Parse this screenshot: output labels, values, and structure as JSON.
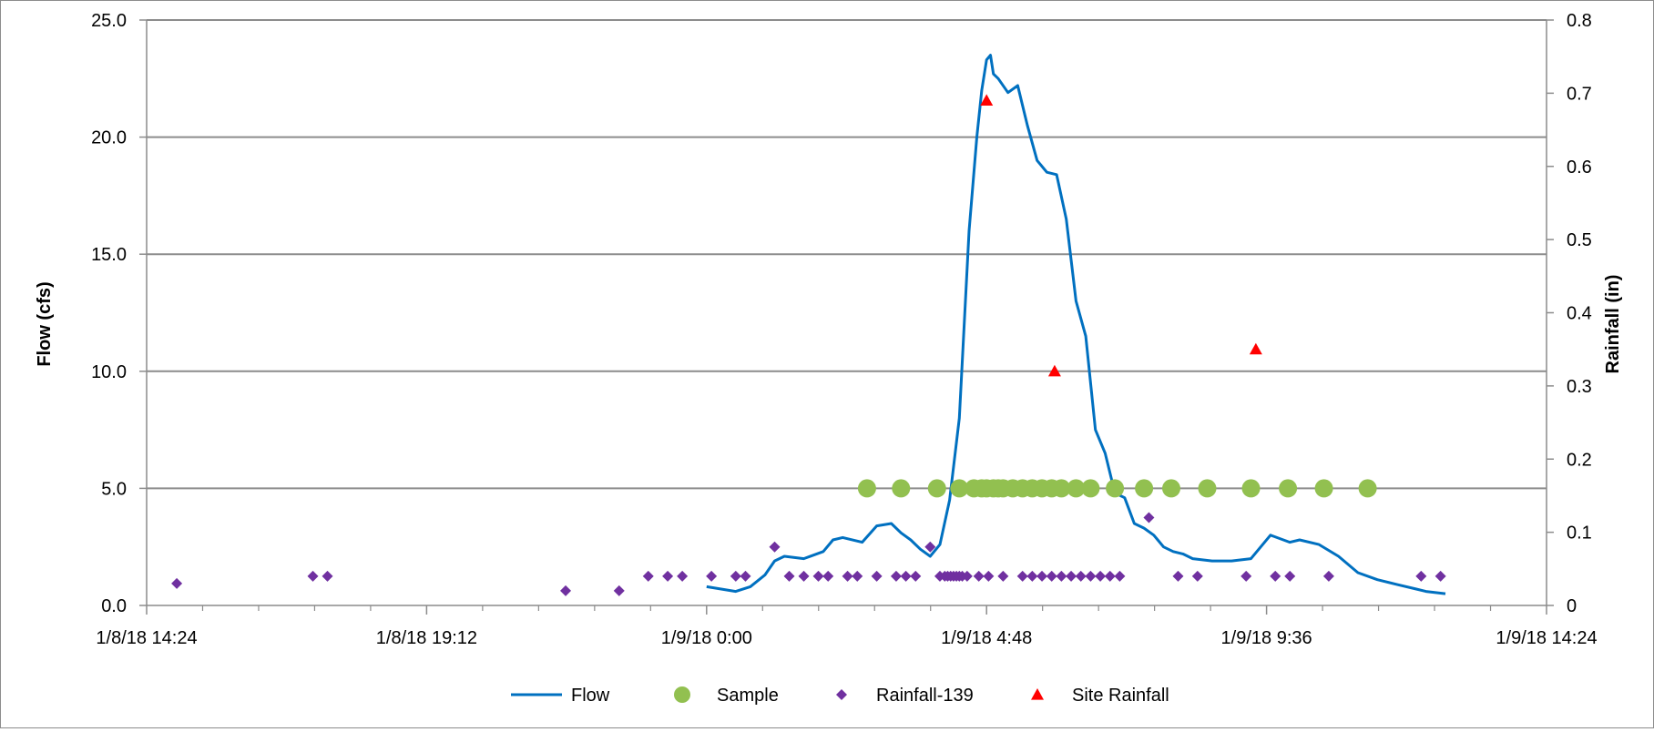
{
  "chart_data": {
    "type": "scatter",
    "title": "",
    "x_axis": {
      "label": "",
      "ticks": [
        "1/8/18 14:24",
        "1/8/18 19:12",
        "1/9/18 0:00",
        "1/9/18 4:48",
        "1/9/18 9:36",
        "1/9/18 14:24"
      ],
      "range": [
        "1/8/18 14:24",
        "1/9/18 14:24"
      ]
    },
    "y_axis_left": {
      "label": "Flow (cfs)",
      "ticks": [
        "0.0",
        "5.0",
        "10.0",
        "15.0",
        "20.0",
        "25.0"
      ],
      "range": [
        0,
        25
      ]
    },
    "y_axis_right": {
      "label": "Rainfall (in)",
      "ticks": [
        "0",
        "0.1",
        "0.2",
        "0.3",
        "0.4",
        "0.5",
        "0.6",
        "0.7",
        "0.8"
      ],
      "range": [
        0,
        0.8
      ]
    },
    "grid": "horizontal",
    "legend_position": "bottom",
    "series": [
      {
        "name": "Flow",
        "type": "line",
        "axis": "left",
        "color": "#0070C0",
        "x": [
          "1/9/18 0:00",
          "1/9/18 0:15",
          "1/9/18 0:30",
          "1/9/18 0:45",
          "1/9/18 1:00",
          "1/9/18 1:10",
          "1/9/18 1:20",
          "1/9/18 1:40",
          "1/9/18 2:00",
          "1/9/18 2:10",
          "1/9/18 2:20",
          "1/9/18 2:40",
          "1/9/18 2:55",
          "1/9/18 3:10",
          "1/9/18 3:20",
          "1/9/18 3:30",
          "1/9/18 3:40",
          "1/9/18 3:50",
          "1/9/18 4:00",
          "1/9/18 4:10",
          "1/9/18 4:20",
          "1/9/18 4:30",
          "1/9/18 4:38",
          "1/9/18 4:43",
          "1/9/18 4:48",
          "1/9/18 4:52",
          "1/9/18 4:55",
          "1/9/18 5:00",
          "1/9/18 5:10",
          "1/9/18 5:20",
          "1/9/18 5:30",
          "1/9/18 5:40",
          "1/9/18 5:50",
          "1/9/18 6:00",
          "1/9/18 6:10",
          "1/9/18 6:20",
          "1/9/18 6:30",
          "1/9/18 6:40",
          "1/9/18 6:50",
          "1/9/18 7:00",
          "1/9/18 7:10",
          "1/9/18 7:20",
          "1/9/18 7:30",
          "1/9/18 7:40",
          "1/9/18 7:50",
          "1/9/18 8:00",
          "1/9/18 8:10",
          "1/9/18 8:20",
          "1/9/18 8:40",
          "1/9/18 9:00",
          "1/9/18 9:20",
          "1/9/18 9:40",
          "1/9/18 10:00",
          "1/9/18 10:10",
          "1/9/18 10:30",
          "1/9/18 10:50",
          "1/9/18 11:10",
          "1/9/18 11:30",
          "1/9/18 11:50",
          "1/9/18 12:10",
          "1/9/18 12:20",
          "1/9/18 12:40"
        ],
        "y": [
          0.8,
          0.7,
          0.6,
          0.8,
          1.3,
          1.9,
          2.1,
          2.0,
          2.3,
          2.8,
          2.9,
          2.7,
          3.4,
          3.5,
          3.1,
          2.8,
          2.4,
          2.1,
          2.6,
          4.5,
          8.0,
          16.0,
          20.0,
          22.0,
          23.3,
          23.5,
          22.7,
          22.5,
          21.9,
          22.2,
          20.5,
          19.0,
          18.5,
          18.4,
          16.5,
          13.0,
          11.5,
          7.5,
          6.5,
          4.8,
          4.6,
          3.5,
          3.3,
          3.0,
          2.5,
          2.3,
          2.2,
          2.0,
          1.9,
          1.9,
          2.0,
          3.0,
          2.7,
          2.8,
          2.6,
          2.1,
          1.4,
          1.1,
          0.9,
          0.7,
          0.6,
          0.5
        ]
      },
      {
        "name": "Sample",
        "type": "scatter",
        "axis": "left",
        "color": "#92C050",
        "marker": "circle",
        "x": [
          "1/9/18 2:45",
          "1/9/18 3:20",
          "1/9/18 3:57",
          "1/9/18 4:20",
          "1/9/18 4:35",
          "1/9/18 4:43",
          "1/9/18 4:48",
          "1/9/18 4:55",
          "1/9/18 5:00",
          "1/9/18 5:05",
          "1/9/18 5:15",
          "1/9/18 5:25",
          "1/9/18 5:35",
          "1/9/18 5:45",
          "1/9/18 5:55",
          "1/9/18 6:05",
          "1/9/18 6:20",
          "1/9/18 6:35",
          "1/9/18 7:00",
          "1/9/18 7:30",
          "1/9/18 7:58",
          "1/9/18 8:35",
          "1/9/18 9:20",
          "1/9/18 9:58",
          "1/9/18 10:35",
          "1/9/18 11:20"
        ],
        "y": [
          5.0,
          5.0,
          5.0,
          5.0,
          5.0,
          5.0,
          5.0,
          5.0,
          5.0,
          5.0,
          5.0,
          5.0,
          5.0,
          5.0,
          5.0,
          5.0,
          5.0,
          5.0,
          5.0,
          5.0,
          5.0,
          5.0,
          5.0,
          5.0,
          5.0,
          5.0
        ]
      },
      {
        "name": "Rainfall-139",
        "type": "scatter",
        "axis": "right",
        "color": "#7030A0",
        "marker": "diamond",
        "x": [
          "1/8/18 14:55",
          "1/8/18 17:15",
          "1/8/18 17:30",
          "1/8/18 21:35",
          "1/8/18 22:30",
          "1/8/18 23:00",
          "1/8/18 23:20",
          "1/8/18 23:35",
          "1/9/18 0:05",
          "1/9/18 0:30",
          "1/9/18 0:40",
          "1/9/18 1:10",
          "1/9/18 1:25",
          "1/9/18 1:40",
          "1/9/18 1:55",
          "1/9/18 2:05",
          "1/9/18 2:25",
          "1/9/18 2:35",
          "1/9/18 2:55",
          "1/9/18 3:15",
          "1/9/18 3:25",
          "1/9/18 3:35",
          "1/9/18 3:50",
          "1/9/18 4:00",
          "1/9/18 4:05",
          "1/9/18 4:08",
          "1/9/18 4:11",
          "1/9/18 4:14",
          "1/9/18 4:17",
          "1/9/18 4:20",
          "1/9/18 4:23",
          "1/9/18 4:28",
          "1/9/18 4:40",
          "1/9/18 4:50",
          "1/9/18 5:05",
          "1/9/18 5:25",
          "1/9/18 5:35",
          "1/9/18 5:45",
          "1/9/18 5:55",
          "1/9/18 6:05",
          "1/9/18 6:15",
          "1/9/18 6:25",
          "1/9/18 6:35",
          "1/9/18 6:45",
          "1/9/18 6:55",
          "1/9/18 7:05",
          "1/9/18 7:35",
          "1/9/18 8:05",
          "1/9/18 8:25",
          "1/9/18 9:15",
          "1/9/18 9:45",
          "1/9/18 10:00",
          "1/9/18 10:40",
          "1/9/18 12:15",
          "1/9/18 12:35"
        ],
        "y": [
          0.03,
          0.04,
          0.04,
          0.02,
          0.02,
          0.04,
          0.04,
          0.04,
          0.04,
          0.04,
          0.04,
          0.08,
          0.04,
          0.04,
          0.04,
          0.04,
          0.04,
          0.04,
          0.04,
          0.04,
          0.04,
          0.04,
          0.08,
          0.04,
          0.04,
          0.04,
          0.04,
          0.04,
          0.04,
          0.04,
          0.04,
          0.04,
          0.04,
          0.04,
          0.04,
          0.04,
          0.04,
          0.04,
          0.04,
          0.04,
          0.04,
          0.04,
          0.04,
          0.04,
          0.04,
          0.04,
          0.12,
          0.04,
          0.04,
          0.04,
          0.04,
          0.04,
          0.04,
          0.04,
          0.04
        ]
      },
      {
        "name": "Site Rainfall",
        "type": "scatter",
        "axis": "right",
        "color": "#FF0000",
        "marker": "triangle",
        "x": [
          "1/9/18 4:48",
          "1/9/18 5:58",
          "1/9/18 9:25"
        ],
        "y": [
          0.69,
          0.32,
          0.35
        ]
      }
    ]
  }
}
